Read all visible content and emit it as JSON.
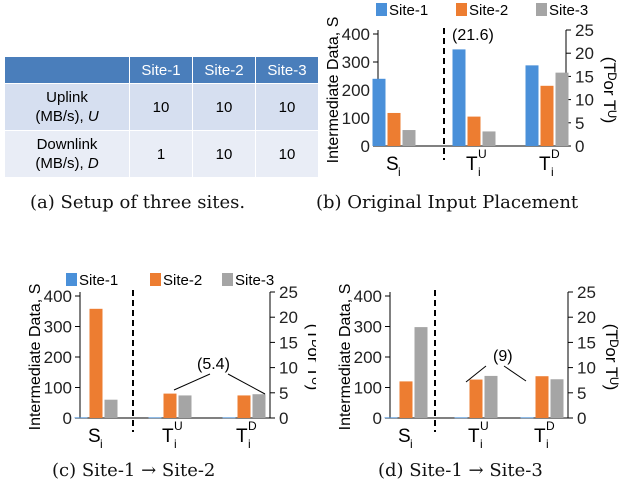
{
  "setup_table": {
    "corner": "",
    "columns": [
      "Site-1",
      "Site-2",
      "Site-3"
    ],
    "rows": [
      {
        "label_line1": "Uplink",
        "label_line2_prefix": "(MB/s),",
        "symbol": "U",
        "values": [
          "10",
          "10",
          "10"
        ]
      },
      {
        "label_line1": "Downlink",
        "label_line2_prefix": "(MB/s),",
        "symbol": "D",
        "values": [
          "1",
          "10",
          "10"
        ]
      }
    ]
  },
  "captions": {
    "a": "(a) Setup of three sites.",
    "b": "(b) Original Input Placement",
    "c": "(c) Site-1 → Site-2",
    "d": "(d) Site-1 → Site-3"
  },
  "legend": [
    "Site-1",
    "Site-2",
    "Site-3"
  ],
  "colors": {
    "site1": "#4a90d9",
    "site2": "#ed7d31",
    "site3": "#a5a5a5"
  },
  "chart_data": [
    {
      "id": "b",
      "type": "bar",
      "categories": [
        "S",
        "T",
        "T"
      ],
      "category_subscript": [
        "i",
        "i",
        "i"
      ],
      "category_superscript": [
        "",
        "U",
        "D"
      ],
      "series": [
        {
          "name": "Site-1",
          "values": [
            240,
            345,
            288
          ]
        },
        {
          "name": "Site-2",
          "values": [
            118,
            105,
            215
          ]
        },
        {
          "name": "Site-3",
          "values": [
            57,
            52,
            262
          ]
        }
      ],
      "ylabel": "Intermediate Data, S",
      "y2label": "(Tᴰor Tᵁ)",
      "ylim": [
        0,
        400
      ],
      "yticks": [
        0,
        100,
        200,
        300,
        400
      ],
      "y2ticks": [
        0,
        5,
        10,
        15,
        20,
        25
      ],
      "annotation": "(21.6)",
      "divider": true,
      "legend_placement": "top"
    },
    {
      "id": "c",
      "type": "bar",
      "categories": [
        "S",
        "T",
        "T"
      ],
      "category_subscript": [
        "i",
        "i",
        "i"
      ],
      "category_superscript": [
        "",
        "U",
        "D"
      ],
      "series": [
        {
          "name": "Site-1",
          "values": [
            2,
            2,
            2
          ]
        },
        {
          "name": "Site-2",
          "values": [
            358,
            80,
            74
          ]
        },
        {
          "name": "Site-3",
          "values": [
            60,
            74,
            78
          ]
        }
      ],
      "ylabel": "Intermediate Data, S",
      "y2label": "(Tᴰor Tᵁ)",
      "ylim": [
        0,
        400
      ],
      "yticks": [
        0,
        100,
        200,
        300,
        400
      ],
      "y2ticks": [
        0,
        5,
        10,
        15,
        20,
        25
      ],
      "annotation": "(5.4)",
      "divider": true,
      "legend_placement": "top"
    },
    {
      "id": "d",
      "type": "bar",
      "categories": [
        "S",
        "T",
        "T"
      ],
      "category_subscript": [
        "i",
        "i",
        "i"
      ],
      "category_superscript": [
        "",
        "U",
        "D"
      ],
      "series": [
        {
          "name": "Site-1",
          "values": [
            2,
            2,
            2
          ]
        },
        {
          "name": "Site-2",
          "values": [
            120,
            126,
            137
          ]
        },
        {
          "name": "Site-3",
          "values": [
            298,
            138,
            127
          ]
        }
      ],
      "ylabel": "Intermediate Data, S",
      "y2label": "(Tᴰor Tᵁ)",
      "ylim": [
        0,
        400
      ],
      "yticks": [
        0,
        100,
        200,
        300,
        400
      ],
      "y2ticks": [
        0,
        5,
        10,
        15,
        20,
        25
      ],
      "annotation": "(9)",
      "divider": true,
      "legend_placement": "top"
    }
  ]
}
